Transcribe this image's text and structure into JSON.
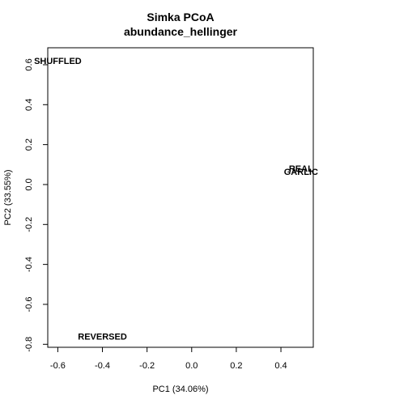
{
  "chart_data": {
    "type": "scatter",
    "title": "Simka PCoA",
    "subtitle": "abundance_hellinger",
    "xlabel": "PC1 (34.06%)",
    "ylabel": "PC2 (33.55%)",
    "xlim": [
      -0.645,
      0.545
    ],
    "ylim": [
      -0.815,
      0.685
    ],
    "x_ticks": [
      -0.6,
      -0.4,
      -0.2,
      0.0,
      0.2,
      0.4
    ],
    "x_tick_labels": [
      "-0.6",
      "-0.4",
      "-0.2",
      "0.0",
      "0.2",
      "0.4"
    ],
    "y_ticks": [
      -0.8,
      -0.6,
      -0.4,
      -0.2,
      0.0,
      0.2,
      0.4,
      0.6
    ],
    "y_tick_labels": [
      "-0.8",
      "-0.6",
      "-0.4",
      "-0.2",
      "0.0",
      "0.2",
      "0.4",
      "0.6"
    ],
    "grid": false,
    "points": [
      {
        "label": "SHUFFLED",
        "x": -0.6,
        "y": 0.62
      },
      {
        "label": "REAL",
        "x": 0.49,
        "y": 0.08
      },
      {
        "label": "GARLIC",
        "x": 0.49,
        "y": 0.065
      },
      {
        "label": "REVERSED",
        "x": -0.4,
        "y": -0.76
      }
    ]
  }
}
